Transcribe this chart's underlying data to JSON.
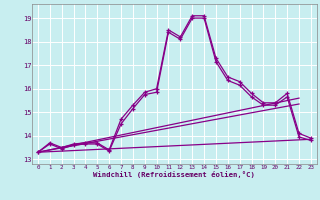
{
  "xlabel": "Windchill (Refroidissement éolien,°C)",
  "bg_color": "#c8eef0",
  "line_color": "#880088",
  "grid_color": "#ffffff",
  "x_ticks": [
    0,
    1,
    2,
    3,
    4,
    5,
    6,
    7,
    8,
    9,
    10,
    11,
    12,
    13,
    14,
    15,
    16,
    17,
    18,
    19,
    20,
    21,
    22,
    23
  ],
  "y_ticks": [
    13,
    14,
    15,
    16,
    17,
    18,
    19
  ],
  "ylim": [
    12.8,
    19.6
  ],
  "xlim": [
    -0.5,
    23.5
  ],
  "line1_x": [
    0,
    1,
    2,
    3,
    4,
    5,
    6,
    7,
    8,
    9,
    10,
    11,
    12,
    13,
    14,
    15,
    16,
    17,
    18,
    19,
    20,
    21,
    22,
    23
  ],
  "line1_y": [
    13.3,
    13.7,
    13.5,
    13.65,
    13.7,
    13.7,
    13.4,
    14.7,
    15.3,
    15.85,
    16.0,
    18.5,
    18.2,
    19.1,
    19.1,
    17.3,
    16.5,
    16.3,
    15.8,
    15.4,
    15.4,
    15.8,
    14.1,
    13.9
  ],
  "line2_x": [
    0,
    1,
    2,
    3,
    4,
    5,
    6,
    7,
    8,
    9,
    10,
    11,
    12,
    13,
    14,
    15,
    16,
    17,
    18,
    19,
    20,
    21,
    22,
    23
  ],
  "line2_y": [
    13.3,
    13.65,
    13.45,
    13.6,
    13.65,
    13.65,
    13.35,
    14.5,
    15.15,
    15.75,
    15.85,
    18.4,
    18.1,
    19.0,
    19.0,
    17.15,
    16.35,
    16.15,
    15.65,
    15.3,
    15.3,
    15.65,
    13.95,
    13.8
  ],
  "line3_x": [
    0,
    23
  ],
  "line3_y": [
    13.3,
    13.85
  ],
  "line4_x": [
    0,
    22
  ],
  "line4_y": [
    13.3,
    15.35
  ],
  "line5_x": [
    0,
    22
  ],
  "line5_y": [
    13.3,
    15.6
  ]
}
